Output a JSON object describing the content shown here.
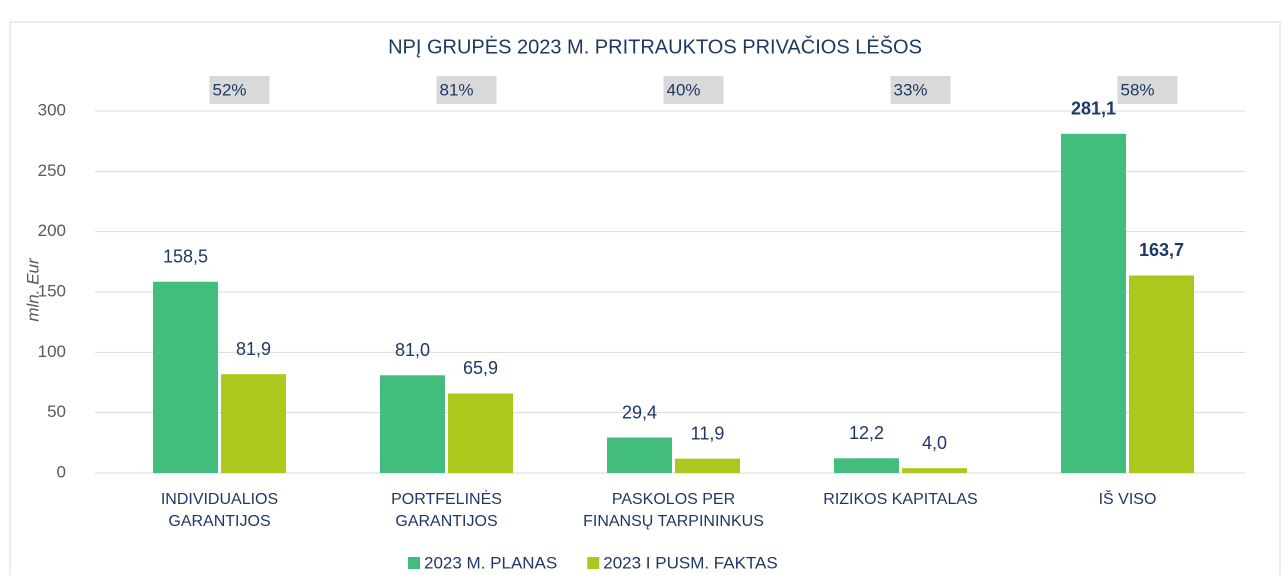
{
  "chart_data": {
    "type": "bar",
    "title": "NPĮ GRUPĖS 2023 M. PRITRAUKTOS PRIVAČIOS LĖŠOS",
    "y_label": "mln. Eur",
    "categories": [
      [
        "INDIVIDUALIOS",
        "GARANTIJOS"
      ],
      [
        "PORTFELINĖS",
        "GARANTIJOS"
      ],
      [
        "PASKOLOS PER",
        "FINANSŲ TARPININKUS"
      ],
      [
        "RIZIKOS KAPITALAS"
      ],
      [
        "IŠ VISO"
      ]
    ],
    "annotations": [
      "52%",
      "81%",
      "40%",
      "33%",
      "58%"
    ],
    "series": [
      {
        "name": "2023 M. PLANAS",
        "color": "#43bd7e",
        "values": [
          158.5,
          81.0,
          29.4,
          12.2,
          281.1
        ],
        "value_labels": [
          "158,5",
          "81,0",
          "29,4",
          "12,2",
          "281,1"
        ]
      },
      {
        "name": "2023 I PUSM. FAKTAS",
        "color": "#adc81c",
        "values": [
          81.9,
          65.9,
          11.9,
          4.0,
          163.7
        ],
        "value_labels": [
          "81,9",
          "65,9",
          "11,9",
          "4,0",
          "163,7"
        ]
      }
    ],
    "ylim": [
      0,
      300
    ],
    "yticks": [
      0,
      50,
      100,
      150,
      200,
      250,
      300
    ],
    "grid": true
  }
}
